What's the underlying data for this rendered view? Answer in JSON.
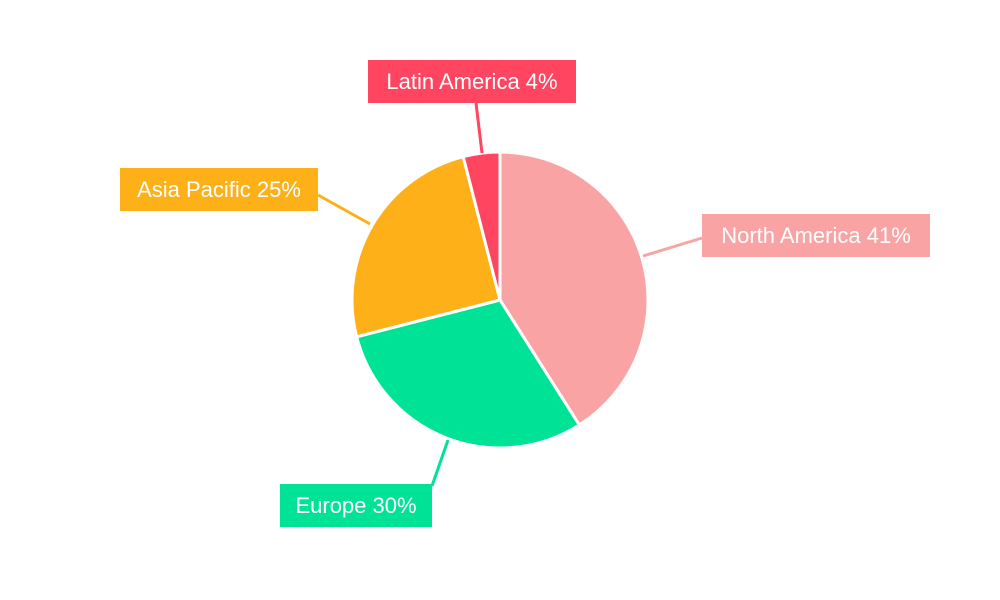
{
  "chart_data": {
    "type": "pie",
    "title": "",
    "categories": [
      "North America",
      "Europe",
      "Asia Pacific",
      "Latin America"
    ],
    "values": [
      41,
      30,
      25,
      4
    ],
    "labels": [
      "North America 41%",
      "Europe 30%",
      "Asia Pacific 25%",
      "Latin America 4%"
    ],
    "colors": [
      "#f9a3a4",
      "#00e396",
      "#feb019",
      "#ff4560"
    ],
    "start_angle": "top",
    "direction": "clockwise",
    "legend": "none"
  }
}
